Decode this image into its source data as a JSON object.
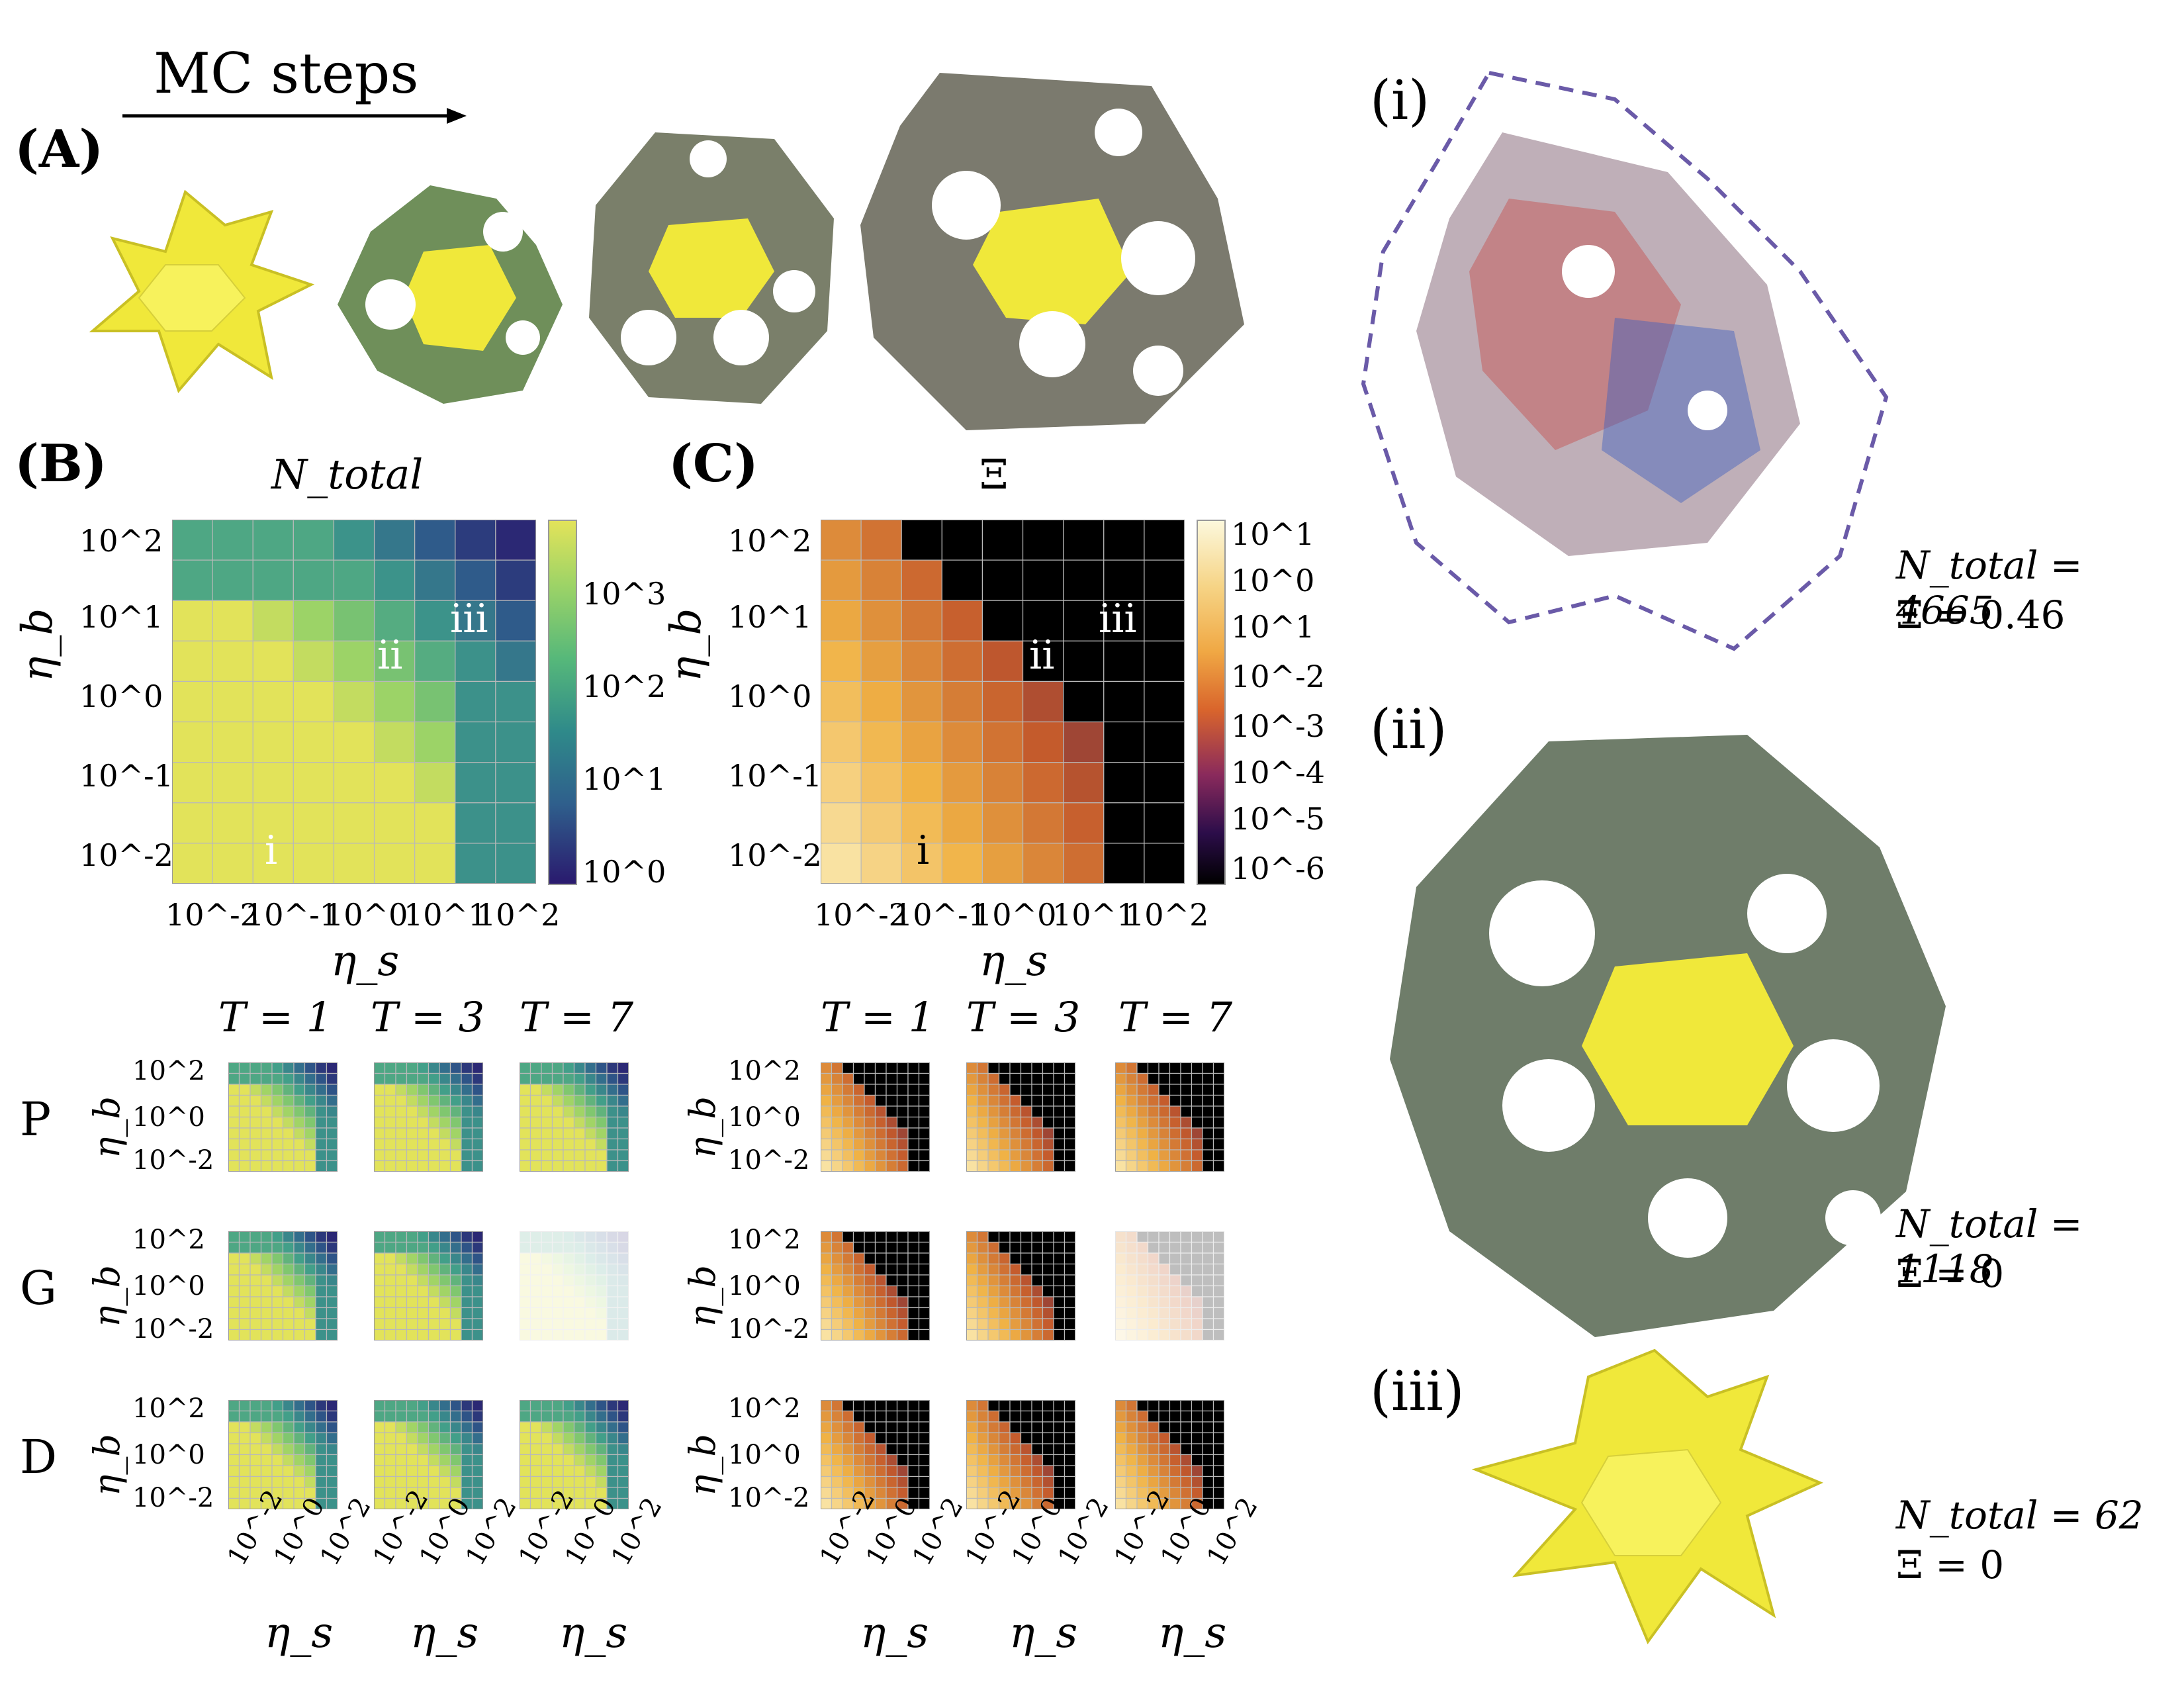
{
  "panelA": {
    "label": "(A)",
    "arrow_label": "MC steps"
  },
  "panelB": {
    "label": "(B)",
    "title": "N_total",
    "colorbar_ticks": [
      "10^3",
      "10^2",
      "10^1",
      "10^0"
    ],
    "markers": [
      "i",
      "ii",
      "iii"
    ]
  },
  "panelC": {
    "label": "(C)",
    "title": "Ξ",
    "colorbar_ticks": [
      "10^1",
      "10^0",
      "10^1",
      "10^-2",
      "10^-3",
      "10^-4",
      "10^-5",
      "10^-6"
    ],
    "markers": [
      "i",
      "ii",
      "iii"
    ]
  },
  "axes": {
    "xlabel": "η_s",
    "ylabel": "η_b",
    "main_ticks": [
      "10^-2",
      "10^-1",
      "10^0",
      "10^1",
      "10^2"
    ],
    "small_ticks": [
      "10^-2",
      "10^0",
      "10^2"
    ]
  },
  "small_grid": {
    "temperatures": [
      "T = 1",
      "T = 3",
      "T = 7"
    ],
    "rows": [
      "P",
      "G",
      "D"
    ]
  },
  "side_panels": {
    "i": {
      "label": "(i)",
      "n_total": "N_total = 4665",
      "xi": "Ξ = 0.46"
    },
    "ii": {
      "label": "(ii)",
      "n_total": "N_total = 1118",
      "xi": "Ξ = 0"
    },
    "iii": {
      "label": "(iii)",
      "n_total": "N_total = 62",
      "xi": "Ξ = 0"
    }
  },
  "colors": {
    "viridis_low": "#2a1a6e",
    "viridis_mid": "#3f9d8a",
    "viridis_high": "#e2e35a",
    "inferno_high": "#fcf4c4",
    "inferno_mid": "#f0b245",
    "inferno_low": "#000000",
    "mesh_yellow": "#f4ee3c"
  }
}
